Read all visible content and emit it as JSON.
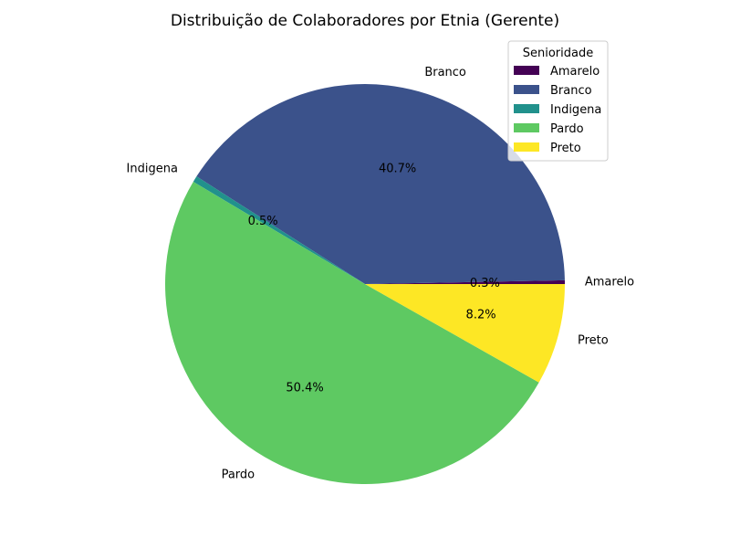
{
  "chart_data": {
    "type": "pie",
    "title": "Distribuição de Colaboradores por Etnia (Gerente)",
    "legend_title": "Senioridade",
    "legend_position": "top-right",
    "start_angle_deg": 0,
    "direction": "counterclockwise",
    "slices": [
      {
        "label": "Amarelo",
        "value": 0.3,
        "pct_label": "0.3%",
        "color": "#440154"
      },
      {
        "label": "Branco",
        "value": 40.7,
        "pct_label": "40.7%",
        "color": "#3b528b"
      },
      {
        "label": "Indigena",
        "value": 0.5,
        "pct_label": "0.5%",
        "color": "#21918c"
      },
      {
        "label": "Pardo",
        "value": 50.4,
        "pct_label": "50.4%",
        "color": "#5ec962"
      },
      {
        "label": "Preto",
        "value": 8.2,
        "pct_label": "8.2%",
        "color": "#fde725"
      }
    ]
  }
}
